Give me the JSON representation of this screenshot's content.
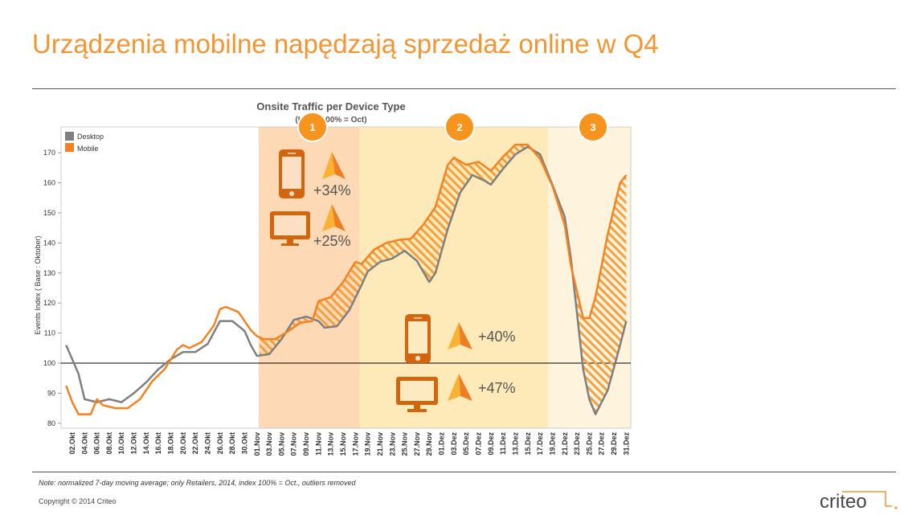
{
  "title": "Urządzenia mobilne napędzają sprzedaż online w Q4",
  "note": "Note: normalized 7-day moving average; only Retailers, 2014, index 100% = Oct., outliers removed",
  "copyright": "Copyright © 2014 Criteo",
  "logo_text": "criteo",
  "colors": {
    "accent": "#f39530",
    "desktop": "#7f7f7f",
    "mobile": "#f58220",
    "icon": "#d4650f"
  },
  "callouts": [
    {
      "number": "1",
      "mobile": "+34%",
      "desktop": "+25%"
    },
    {
      "number": "2",
      "mobile": "+40%",
      "desktop": "+47%"
    },
    {
      "number": "3"
    }
  ],
  "chart_data": {
    "type": "line",
    "title": "Onsite Traffic per Device Type",
    "subtitle": "(Index 100% = Oct)",
    "ylabel": "Events Index ( Base : Oktober)",
    "xlabel": "",
    "ylim": [
      78,
      179
    ],
    "yticks": [
      80,
      90,
      100,
      110,
      120,
      130,
      140,
      150,
      160,
      170
    ],
    "reference_line": 100,
    "x_unit": "day of Q4 (1 = 01.Okt)",
    "xlim": [
      1,
      92
    ],
    "xtick_labels": [
      "02.Okt",
      "04.Okt",
      "06.Okt",
      "08.Okt",
      "10.Okt",
      "12.Okt",
      "14.Okt",
      "16.Okt",
      "18.Okt",
      "20.Okt",
      "22.Okt",
      "24.Okt",
      "26.Okt",
      "28.Okt",
      "30.Okt",
      "01.Nov",
      "03.Nov",
      "05.Nov",
      "07.Nov",
      "09.Nov",
      "11.Nov",
      "13.Nov",
      "15.Nov",
      "17.Nov",
      "19.Nov",
      "21.Nov",
      "23.Nov",
      "25.Nov",
      "27.Nov",
      "29.Nov",
      "01.Dez",
      "03.Dez",
      "05.Dez",
      "07.Dez",
      "09.Dez",
      "11.Dez",
      "13.Dez",
      "15.Dez",
      "17.Dez",
      "19.Dez",
      "21.Dez",
      "23.Dez",
      "25.Dez",
      "27.Dez",
      "29.Dez",
      "31.Dez"
    ],
    "xtick_days": [
      2,
      4,
      6,
      8,
      10,
      12,
      14,
      16,
      18,
      20,
      22,
      24,
      26,
      28,
      30,
      32,
      34,
      36,
      38,
      40,
      42,
      44,
      46,
      48,
      50,
      52,
      54,
      56,
      58,
      60,
      62,
      64,
      66,
      68,
      70,
      72,
      74,
      76,
      78,
      80,
      82,
      84,
      86,
      88,
      90,
      92
    ],
    "legend": {
      "placement": "top-left",
      "entries": [
        "Desktop",
        "Mobile"
      ]
    },
    "phases": [
      {
        "label": "1",
        "from": 32.3,
        "to": 48.7
      },
      {
        "label": "2",
        "from": 48.7,
        "to": 79.3
      },
      {
        "label": "3",
        "from": 79.3,
        "to": 92.7
      }
    ],
    "series": [
      {
        "name": "Desktop",
        "points": [
          [
            1,
            106
          ],
          [
            3,
            96.5
          ],
          [
            4,
            88
          ],
          [
            6,
            87
          ],
          [
            8,
            88
          ],
          [
            10,
            87
          ],
          [
            12,
            90
          ],
          [
            14,
            93.6
          ],
          [
            16,
            98
          ],
          [
            18,
            101.3
          ],
          [
            20,
            103.7
          ],
          [
            22,
            103.7
          ],
          [
            24,
            106.4
          ],
          [
            26,
            114
          ],
          [
            28,
            114
          ],
          [
            30,
            110.7
          ],
          [
            31,
            106
          ],
          [
            32,
            102.4
          ],
          [
            34,
            103
          ],
          [
            36,
            108
          ],
          [
            38,
            114.4
          ],
          [
            40,
            115.5
          ],
          [
            42,
            114
          ],
          [
            43,
            111.8
          ],
          [
            45,
            112.3
          ],
          [
            47,
            117.6
          ],
          [
            49,
            126
          ],
          [
            50,
            130.5
          ],
          [
            52,
            133.7
          ],
          [
            54,
            134.8
          ],
          [
            56,
            137.4
          ],
          [
            58,
            134
          ],
          [
            60,
            127
          ],
          [
            61,
            130
          ],
          [
            63,
            144.6
          ],
          [
            65,
            156.7
          ],
          [
            67,
            162.6
          ],
          [
            69,
            160.7
          ],
          [
            70,
            159.4
          ],
          [
            72,
            164.7
          ],
          [
            74,
            169.5
          ],
          [
            76,
            172
          ],
          [
            78,
            169.5
          ],
          [
            80,
            159.4
          ],
          [
            82,
            148.7
          ],
          [
            83,
            135
          ],
          [
            85,
            98
          ],
          [
            86,
            88
          ],
          [
            87,
            83
          ],
          [
            89,
            91
          ],
          [
            91,
            106
          ],
          [
            92,
            114
          ]
        ]
      },
      {
        "name": "Mobile",
        "points": [
          [
            1,
            92.5
          ],
          [
            2,
            87
          ],
          [
            3,
            83
          ],
          [
            5,
            83
          ],
          [
            6,
            88
          ],
          [
            7,
            86
          ],
          [
            9,
            85
          ],
          [
            11,
            85
          ],
          [
            13,
            88
          ],
          [
            15,
            94
          ],
          [
            17,
            98
          ],
          [
            19,
            104.5
          ],
          [
            20,
            106
          ],
          [
            21,
            105
          ],
          [
            23,
            107
          ],
          [
            25,
            112.5
          ],
          [
            26,
            118
          ],
          [
            27,
            118.7
          ],
          [
            29,
            117
          ],
          [
            31,
            111
          ],
          [
            32,
            109
          ],
          [
            33,
            108
          ],
          [
            35,
            108
          ],
          [
            37,
            110.5
          ],
          [
            39,
            113.4
          ],
          [
            41,
            114
          ],
          [
            42,
            120.6
          ],
          [
            44,
            122
          ],
          [
            46,
            127
          ],
          [
            48,
            133.7
          ],
          [
            49,
            133
          ],
          [
            51,
            137.7
          ],
          [
            53,
            140
          ],
          [
            55,
            141
          ],
          [
            57,
            141.4
          ],
          [
            59,
            146
          ],
          [
            61,
            152
          ],
          [
            63,
            166
          ],
          [
            64,
            168.4
          ],
          [
            66,
            166
          ],
          [
            68,
            167
          ],
          [
            70,
            164
          ],
          [
            72,
            168.7
          ],
          [
            74,
            172.7
          ],
          [
            76,
            172.7
          ],
          [
            78,
            168
          ],
          [
            80,
            159
          ],
          [
            82,
            146
          ],
          [
            83,
            132.6
          ],
          [
            85,
            115
          ],
          [
            86,
            115
          ],
          [
            87,
            122
          ],
          [
            89,
            143
          ],
          [
            91,
            160
          ],
          [
            92,
            162.6
          ]
        ]
      }
    ]
  }
}
